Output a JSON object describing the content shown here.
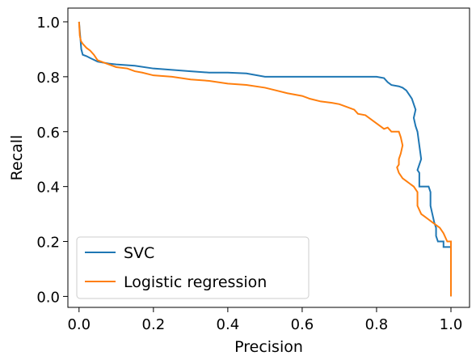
{
  "chart_data": {
    "type": "line",
    "title": "",
    "xlabel": "Precision",
    "ylabel": "Recall",
    "xlim": [
      -0.03,
      1.05
    ],
    "ylim": [
      -0.04,
      1.05
    ],
    "xticks": [
      "0.0",
      "0.2",
      "0.4",
      "0.6",
      "0.8",
      "1.0"
    ],
    "yticks": [
      "0.0",
      "0.2",
      "0.4",
      "0.6",
      "0.8",
      "1.0"
    ],
    "xtick_values": [
      0.0,
      0.2,
      0.4,
      0.6,
      0.8,
      1.0
    ],
    "ytick_values": [
      0.0,
      0.2,
      0.4,
      0.6,
      0.8,
      1.0
    ],
    "grid": false,
    "legend_position": "lower-left",
    "series": [
      {
        "name": "SVC",
        "color": "#1f77b4",
        "points": [
          [
            0.0,
            1.0
          ],
          [
            0.003,
            0.95
          ],
          [
            0.006,
            0.9
          ],
          [
            0.01,
            0.88
          ],
          [
            0.02,
            0.875
          ],
          [
            0.03,
            0.868
          ],
          [
            0.05,
            0.855
          ],
          [
            0.08,
            0.848
          ],
          [
            0.1,
            0.845
          ],
          [
            0.15,
            0.84
          ],
          [
            0.2,
            0.83
          ],
          [
            0.25,
            0.825
          ],
          [
            0.3,
            0.82
          ],
          [
            0.35,
            0.815
          ],
          [
            0.4,
            0.815
          ],
          [
            0.45,
            0.812
          ],
          [
            0.5,
            0.8
          ],
          [
            0.55,
            0.8
          ],
          [
            0.6,
            0.8
          ],
          [
            0.65,
            0.8
          ],
          [
            0.7,
            0.8
          ],
          [
            0.75,
            0.8
          ],
          [
            0.8,
            0.8
          ],
          [
            0.82,
            0.795
          ],
          [
            0.83,
            0.78
          ],
          [
            0.84,
            0.77
          ],
          [
            0.86,
            0.765
          ],
          [
            0.87,
            0.76
          ],
          [
            0.88,
            0.75
          ],
          [
            0.89,
            0.73
          ],
          [
            0.895,
            0.72
          ],
          [
            0.9,
            0.7
          ],
          [
            0.905,
            0.68
          ],
          [
            0.9,
            0.65
          ],
          [
            0.905,
            0.62
          ],
          [
            0.91,
            0.6
          ],
          [
            0.915,
            0.55
          ],
          [
            0.92,
            0.5
          ],
          [
            0.91,
            0.46
          ],
          [
            0.915,
            0.45
          ],
          [
            0.915,
            0.4
          ],
          [
            0.93,
            0.4
          ],
          [
            0.94,
            0.4
          ],
          [
            0.945,
            0.38
          ],
          [
            0.945,
            0.33
          ],
          [
            0.95,
            0.3
          ],
          [
            0.955,
            0.27
          ],
          [
            0.96,
            0.25
          ],
          [
            0.96,
            0.22
          ],
          [
            0.965,
            0.2
          ],
          [
            0.98,
            0.2
          ],
          [
            0.98,
            0.18
          ],
          [
            1.0,
            0.18
          ],
          [
            1.0,
            0.0
          ]
        ]
      },
      {
        "name": "Logistic regression",
        "color": "#ff7f0e",
        "points": [
          [
            0.0,
            1.0
          ],
          [
            0.002,
            0.95
          ],
          [
            0.005,
            0.93
          ],
          [
            0.01,
            0.92
          ],
          [
            0.02,
            0.905
          ],
          [
            0.03,
            0.895
          ],
          [
            0.04,
            0.88
          ],
          [
            0.05,
            0.86
          ],
          [
            0.07,
            0.85
          ],
          [
            0.1,
            0.835
          ],
          [
            0.13,
            0.83
          ],
          [
            0.15,
            0.82
          ],
          [
            0.17,
            0.815
          ],
          [
            0.2,
            0.805
          ],
          [
            0.25,
            0.8
          ],
          [
            0.3,
            0.79
          ],
          [
            0.35,
            0.785
          ],
          [
            0.4,
            0.775
          ],
          [
            0.45,
            0.77
          ],
          [
            0.5,
            0.76
          ],
          [
            0.53,
            0.75
          ],
          [
            0.56,
            0.74
          ],
          [
            0.6,
            0.73
          ],
          [
            0.62,
            0.72
          ],
          [
            0.65,
            0.71
          ],
          [
            0.68,
            0.705
          ],
          [
            0.7,
            0.7
          ],
          [
            0.72,
            0.69
          ],
          [
            0.74,
            0.68
          ],
          [
            0.75,
            0.665
          ],
          [
            0.77,
            0.66
          ],
          [
            0.79,
            0.64
          ],
          [
            0.8,
            0.63
          ],
          [
            0.81,
            0.62
          ],
          [
            0.82,
            0.61
          ],
          [
            0.83,
            0.615
          ],
          [
            0.84,
            0.6
          ],
          [
            0.86,
            0.6
          ],
          [
            0.865,
            0.58
          ],
          [
            0.87,
            0.55
          ],
          [
            0.865,
            0.52
          ],
          [
            0.86,
            0.5
          ],
          [
            0.86,
            0.48
          ],
          [
            0.855,
            0.47
          ],
          [
            0.86,
            0.45
          ],
          [
            0.87,
            0.43
          ],
          [
            0.88,
            0.42
          ],
          [
            0.89,
            0.41
          ],
          [
            0.9,
            0.4
          ],
          [
            0.91,
            0.38
          ],
          [
            0.91,
            0.33
          ],
          [
            0.92,
            0.3
          ],
          [
            0.93,
            0.29
          ],
          [
            0.94,
            0.28
          ],
          [
            0.95,
            0.27
          ],
          [
            0.96,
            0.26
          ],
          [
            0.97,
            0.25
          ],
          [
            0.98,
            0.23
          ],
          [
            0.99,
            0.2
          ],
          [
            1.0,
            0.2
          ],
          [
            1.0,
            0.0
          ]
        ]
      }
    ]
  }
}
